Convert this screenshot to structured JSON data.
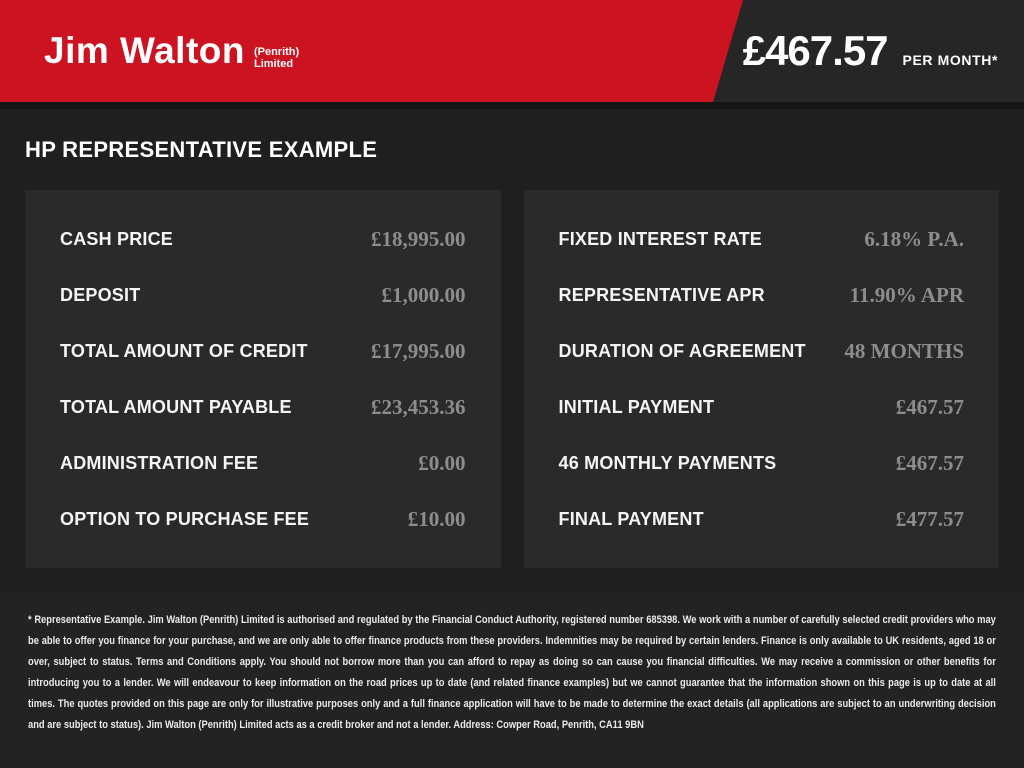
{
  "header": {
    "logo": {
      "brand": "Jim Walton",
      "suffix_line1": "(Penrith)",
      "suffix_line2": "Limited"
    },
    "price": "£467.57",
    "price_caption": "PER MONTH*"
  },
  "page_title": "HP REPRESENTATIVE EXAMPLE",
  "panels": [
    {
      "rows": [
        {
          "label": "CASH PRICE",
          "value": "£18,995.00"
        },
        {
          "label": "DEPOSIT",
          "value": "£1,000.00"
        },
        {
          "label": "TOTAL AMOUNT OF CREDIT",
          "value": "£17,995.00"
        },
        {
          "label": "TOTAL AMOUNT PAYABLE",
          "value": "£23,453.36"
        },
        {
          "label": "ADMINISTRATION FEE",
          "value": "£0.00"
        },
        {
          "label": "OPTION TO PURCHASE FEE",
          "value": "£10.00"
        }
      ]
    },
    {
      "rows": [
        {
          "label": "FIXED INTEREST RATE",
          "value": "6.18% P.A."
        },
        {
          "label": "REPRESENTATIVE APR",
          "value": "11.90% APR"
        },
        {
          "label": "DURATION OF AGREEMENT",
          "value": "48 MONTHS"
        },
        {
          "label": "INITIAL PAYMENT",
          "value": "£467.57"
        },
        {
          "label": "46 MONTHLY PAYMENTS",
          "value": "£467.57"
        },
        {
          "label": "FINAL PAYMENT",
          "value": "£477.57"
        }
      ]
    }
  ],
  "footnote": "* Representative Example. Jim Walton (Penrith) Limited is authorised and regulated by the Financial Conduct Authority, registered number 685398. We work with a number of carefully selected credit providers who may be able to offer you finance for your purchase, and we are only able to offer finance products from these providers. Indemnities may be required by certain lenders. Finance is only available to UK residents, aged 18 or over, subject to status. Terms and Conditions apply. You should not borrow more than you can afford to repay as doing so can cause you financial difficulties. We may receive a commission or other benefits for introducing you to a lender. We will endeavour to keep information on the road prices up to date (and related finance examples) but we cannot guarantee that the information shown on this page is up to date at all times. The quotes provided on this page are only for illustrative purposes only and a full finance application will have to be made to determine the exact details (all applications are subject to an underwriting decision and are subject to status). Jim Walton (Penrith) Limited acts as a credit broker and not a lender. Address: Cowper Road, Penrith, CA11 9BN",
  "colors": {
    "red": "#cb1322",
    "headerDark": "#262626",
    "strip": "#141414",
    "body": "#1f1f1f",
    "panel": "#2a2a2a",
    "footer": "#232323",
    "label": "#f5f5f5",
    "value": "#8d8d8d",
    "fine": "#eaeaea"
  }
}
